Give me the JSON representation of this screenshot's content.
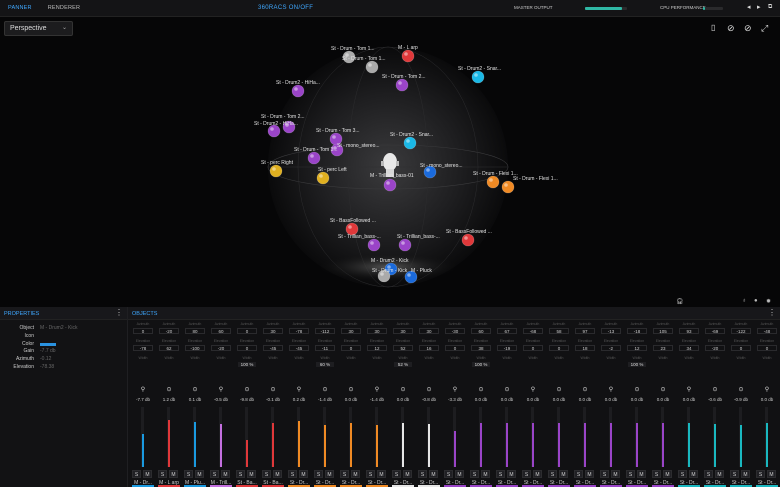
{
  "topbar": {
    "tabs": [
      "PANNER",
      "RENDERER"
    ],
    "center_title": "360RACS ON/OFF",
    "master_output_label": "MASTER OUTPUT",
    "master_output_level": 0.88,
    "cpu_label": "CPU PERFORMANCE",
    "cpu_level": 0.1
  },
  "viewport": {
    "mode": "Perspective",
    "icons": [
      "phone-icon",
      "eye-off-icon",
      "eye-off-icon",
      "expand-icon"
    ],
    "objects": [
      {
        "label": "St - Drum - Tom 1...",
        "color": "#aaaaaa"
      },
      {
        "label": "M - L arp",
        "color": "#e0383a"
      },
      {
        "label": "St - Drum - Tom 1...",
        "color": "#aaaaaa"
      },
      {
        "label": "St - Drum2 - Snar...",
        "color": "#1ab8e6"
      },
      {
        "label": "St - Drum - Tom 2...",
        "color": "#9a44c8"
      },
      {
        "label": "St - Drum2 - HiHa...",
        "color": "#9a44c8"
      },
      {
        "label": "St - Drum - Tom 2...",
        "color": "#9a44c8"
      },
      {
        "label": "St - Drum2 - HiHa...",
        "color": "#9a44c8"
      },
      {
        "label": "St - Drum - Tom 3...",
        "color": "#9a44c8"
      },
      {
        "label": "St - Drum2 - Snar...",
        "color": "#1ab8e6"
      },
      {
        "label": "St - mono_stereo...",
        "color": "#9a44c8"
      },
      {
        "label": "St - Drum - Tom 3...",
        "color": "#9a44c8"
      },
      {
        "label": "St - perc Right",
        "color": "#e0b020"
      },
      {
        "label": "St - perc Left",
        "color": "#e0b020"
      },
      {
        "label": "St - mono_stereo...",
        "color": "#1a6adc"
      },
      {
        "label": "St - Drum - Flexi 1...",
        "color": "#f08a24"
      },
      {
        "label": "St - Drum - Flexi 1...",
        "color": "#f08a24"
      },
      {
        "label": "M - Trillian_bass-01",
        "color": "#9a44c8"
      },
      {
        "label": "St - BassFollowed ...",
        "color": "#e0383a"
      },
      {
        "label": "St - Trillian_bass-...",
        "color": "#9a44c8"
      },
      {
        "label": "St - Trillian_bass-...",
        "color": "#9a44c8"
      },
      {
        "label": "St - BassFollowed ...",
        "color": "#e0383a"
      },
      {
        "label": "M - Drum2 - Kick",
        "color": "#1a6adc"
      },
      {
        "label": "St - Drum - Kick",
        "color": "#aaaaaa"
      },
      {
        "label": "M - Pluck",
        "color": "#1a6adc"
      }
    ]
  },
  "properties": {
    "title": "PROPERTIES",
    "rows": [
      {
        "key": "Object",
        "value": "M - Drum2 - Kick"
      },
      {
        "key": "Icon",
        "value": ""
      },
      {
        "key": "Color",
        "value": ""
      },
      {
        "key": "Gain",
        "value": "-7.7 db"
      },
      {
        "key": "Azimuth",
        "value": "-0.12"
      },
      {
        "key": "Elevation",
        "value": "-78.38"
      }
    ]
  },
  "objects": {
    "title": "OBJECTS",
    "row_labels": [
      "Azimuth",
      "Elevation",
      "Width"
    ],
    "strips": [
      {
        "az": "0",
        "el": "-78",
        "width": "",
        "gain": "-7.7 db",
        "color": "#1a9ae0",
        "level": 0.55,
        "name": "M - Dr..."
      },
      {
        "az": "-20",
        "el": "62",
        "width": "",
        "gain": "1.2 db",
        "color": "#e0383a",
        "level": 0.78,
        "name": "M - L arp"
      },
      {
        "az": "80",
        "el": "-100",
        "width": "",
        "gain": "0.1 db",
        "color": "#1a9ae0",
        "level": 0.75,
        "name": "M - Plu..."
      },
      {
        "az": "60",
        "el": "-20",
        "width": "",
        "gain": "-0.5 db",
        "color": "#c470e0",
        "level": 0.72,
        "name": "M - Trill..."
      },
      {
        "az": "0",
        "el": "0",
        "width": "100 %",
        "gain": "-9.8 db",
        "color": "#e0383a",
        "level": 0.45,
        "name": "St - Ba..."
      },
      {
        "az": "30",
        "el": "-45",
        "width": "",
        "gain": "-0.1 db",
        "color": "#e0383a",
        "level": 0.74,
        "name": "St - Ba..."
      },
      {
        "az": "-78",
        "el": "-45",
        "width": "",
        "gain": "0.2 db",
        "color": "#f08a24",
        "level": 0.76,
        "name": "St - Dr..."
      },
      {
        "az": "-112",
        "el": "-11",
        "width": "60 %",
        "gain": "-1.4 db",
        "color": "#f08a24",
        "level": 0.7,
        "name": "St - Dr..."
      },
      {
        "az": "30",
        "el": "0",
        "width": "",
        "gain": "0.0 db",
        "color": "#f08a24",
        "level": 0.74,
        "name": "St - Dr..."
      },
      {
        "az": "30",
        "el": "12",
        "width": "",
        "gain": "-1.4 db",
        "color": "#f08a24",
        "level": 0.7,
        "name": "St - Dr..."
      },
      {
        "az": "30",
        "el": "52",
        "width": "52 %",
        "gain": "0.0 db",
        "color": "#e6e6e6",
        "level": 0.74,
        "name": "St - Dr..."
      },
      {
        "az": "30",
        "el": "16",
        "width": "",
        "gain": "-0.8 db",
        "color": "#e6e6e6",
        "level": 0.72,
        "name": "St - Dr..."
      },
      {
        "az": "-30",
        "el": "0",
        "width": "",
        "gain": "-3.3 db",
        "color": "#9a44c8",
        "level": 0.6,
        "name": "St - Dr..."
      },
      {
        "az": "60",
        "el": "38",
        "width": "100 %",
        "gain": "0.0 db",
        "color": "#9a44c8",
        "level": 0.74,
        "name": "St - Dr..."
      },
      {
        "az": "67",
        "el": "-19",
        "width": "",
        "gain": "0.0 db",
        "color": "#9a44c8",
        "level": 0.74,
        "name": "St - Dr..."
      },
      {
        "az": "-68",
        "el": "0",
        "width": "",
        "gain": "0.0 db",
        "color": "#9a44c8",
        "level": 0.74,
        "name": "St - Dr..."
      },
      {
        "az": "58",
        "el": "0",
        "width": "",
        "gain": "0.0 db",
        "color": "#9a44c8",
        "level": 0.74,
        "name": "St - Dr..."
      },
      {
        "az": "97",
        "el": "18",
        "width": "",
        "gain": "0.0 db",
        "color": "#9a44c8",
        "level": 0.74,
        "name": "St - Dr..."
      },
      {
        "az": "-13",
        "el": "-2",
        "width": "",
        "gain": "0.0 db",
        "color": "#9a44c8",
        "level": 0.74,
        "name": "St - Dr..."
      },
      {
        "az": "-18",
        "el": "12",
        "width": "100 %",
        "gain": "0.0 db",
        "color": "#9a44c8",
        "level": 0.74,
        "name": "St - Dr..."
      },
      {
        "az": "105",
        "el": "23",
        "width": "",
        "gain": "0.0 db",
        "color": "#9a44c8",
        "level": 0.74,
        "name": "St - Dr..."
      },
      {
        "az": "93",
        "el": "34",
        "width": "",
        "gain": "0.0 db",
        "color": "#1ab8c0",
        "level": 0.74,
        "name": "St - Dr..."
      },
      {
        "az": "-69",
        "el": "-20",
        "width": "",
        "gain": "-0.6 db",
        "color": "#1ab8c0",
        "level": 0.72,
        "name": "St - Dr..."
      },
      {
        "az": "-122",
        "el": "0",
        "width": "",
        "gain": "-0.9 db",
        "color": "#1ab8c0",
        "level": 0.7,
        "name": "St - Dr..."
      },
      {
        "az": "-48",
        "el": "0",
        "width": "",
        "gain": "0.0 db",
        "color": "#1ab8c0",
        "level": 0.74,
        "name": "St - Dr..."
      }
    ]
  }
}
